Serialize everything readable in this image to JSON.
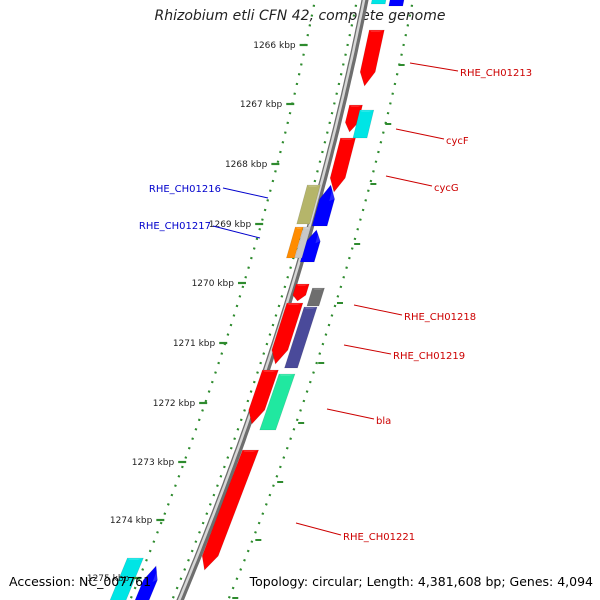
{
  "header": {
    "title": "Rhizobium etli CFN 42, complete genome"
  },
  "footer": {
    "accession": "Accession: NC_007761",
    "summary": "Topology: circular; Length: 4,381,608 bp; Genes: 4,094"
  },
  "colors": {
    "backbone": "#8a8a8a",
    "tick": "#2e8b2e",
    "gene_red": "#ff0000",
    "gene_blue": "#0000ff",
    "gene_cyan": "#00e5e5",
    "gene_olive": "#b5b56a",
    "gene_orange": "#ff8c00",
    "gene_silver": "#c8c8c8",
    "gene_gray": "#6e6e6e",
    "gene_slate": "#4a4a9a",
    "gene_mint": "#20e8a0",
    "label_red": "#cc0000",
    "label_blue": "#0000cc"
  },
  "ticks": [
    {
      "label": "1266 kbp"
    },
    {
      "label": "1267 kbp"
    },
    {
      "label": "1268 kbp"
    },
    {
      "label": "1269 kbp"
    },
    {
      "label": "1270 kbp"
    },
    {
      "label": "1271 kbp"
    },
    {
      "label": "1272 kbp"
    },
    {
      "label": "1273 kbp"
    },
    {
      "label": "1274 kbp"
    },
    {
      "label": "1275 kbp"
    }
  ],
  "gene_labels": [
    {
      "text": "RHE_CH01213",
      "color": "label_red"
    },
    {
      "text": "cycF",
      "color": "label_red"
    },
    {
      "text": "cycG",
      "color": "label_red"
    },
    {
      "text": "RHE_CH01216",
      "color": "label_blue"
    },
    {
      "text": "RHE_CH01217",
      "color": "label_blue"
    },
    {
      "text": "RHE_CH01218",
      "color": "label_red"
    },
    {
      "text": "RHE_CH01219",
      "color": "label_red"
    },
    {
      "text": "bla",
      "color": "label_red"
    },
    {
      "text": "RHE_CH01221",
      "color": "label_red"
    }
  ]
}
